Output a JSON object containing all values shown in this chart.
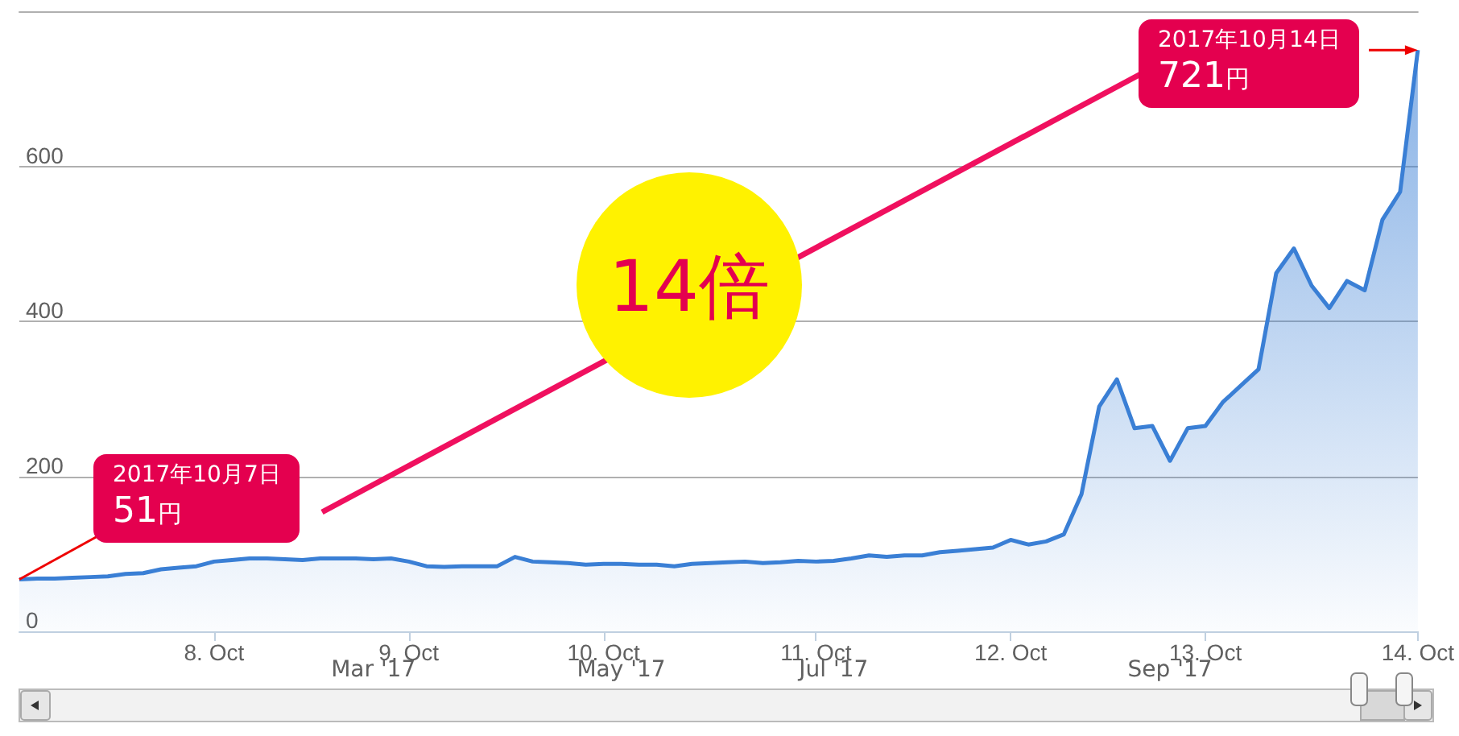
{
  "chart_data": {
    "type": "area",
    "categories": [
      null,
      null,
      null,
      null,
      null,
      null,
      null,
      null,
      null,
      null,
      null,
      "8. Oct",
      null,
      null,
      null,
      null,
      null,
      null,
      null,
      null,
      null,
      null,
      "9. Oct",
      null,
      null,
      null,
      null,
      null,
      null,
      null,
      null,
      null,
      null,
      "10. Oct",
      null,
      null,
      null,
      null,
      null,
      null,
      null,
      null,
      null,
      null,
      null,
      "11. Oct",
      null,
      null,
      null,
      null,
      null,
      null,
      null,
      null,
      null,
      null,
      "12. Oct",
      null,
      null,
      null,
      null,
      null,
      null,
      null,
      null,
      null,
      null,
      "13. Oct",
      null,
      null,
      null,
      null,
      null,
      null,
      null,
      null,
      null,
      null,
      null,
      "14. Oct"
    ],
    "series": [
      {
        "color": "#3a7fd5",
        "values": [
          67,
          68,
          68,
          69,
          70,
          71,
          74,
          75,
          80,
          82,
          84,
          90,
          92,
          94,
          94,
          93,
          92,
          94,
          94,
          94,
          93,
          94,
          90,
          84,
          83,
          84,
          84,
          84,
          96,
          90,
          89,
          88,
          86,
          87,
          87,
          86,
          86,
          84,
          87,
          88,
          89,
          90,
          88,
          89,
          91,
          90,
          91,
          94,
          98,
          96,
          98,
          98,
          102,
          104,
          106,
          108,
          118,
          112,
          116,
          125,
          177,
          290,
          325,
          262,
          265,
          220,
          262,
          265,
          296,
          317,
          338,
          462,
          494,
          446,
          417,
          452,
          440,
          531,
          567,
          750
        ]
      }
    ],
    "ylim": [
      0,
      800
    ],
    "yticks": [
      0,
      200,
      400,
      600
    ],
    "grid": "y",
    "marker": "none",
    "annotations": [
      "2017年10月7日",
      {
        "text": "51円",
        "y": 67
      },
      "2017年10月14日",
      "721円",
      "14倍",
      "Mar '17",
      "May '17",
      "Jul '17",
      "Sep '17"
    ]
  }
}
